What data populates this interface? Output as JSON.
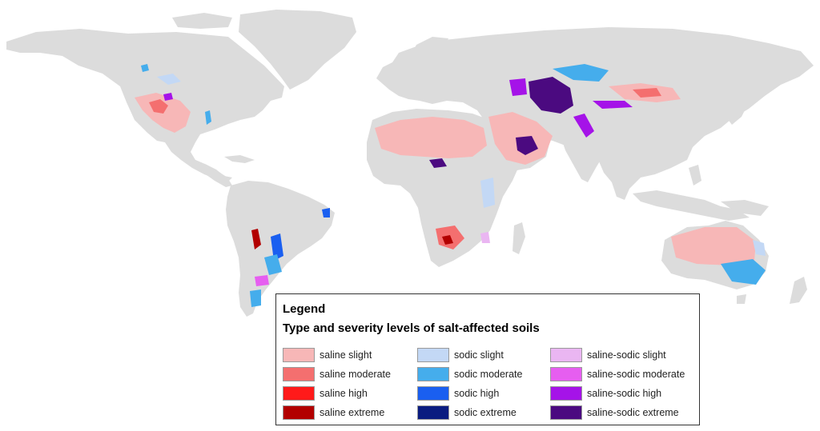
{
  "legend": {
    "title": "Legend",
    "subtitle": "Type and severity levels of salt-affected soils",
    "groups": [
      {
        "type": "saline",
        "items": [
          {
            "label": "saline slight",
            "color": "#f7b7b7"
          },
          {
            "label": "saline moderate",
            "color": "#f46f6f"
          },
          {
            "label": "saline high",
            "color": "#ff1a1a"
          },
          {
            "label": "saline extreme",
            "color": "#b20000"
          }
        ]
      },
      {
        "type": "sodic",
        "items": [
          {
            "label": "sodic slight",
            "color": "#c3d8f5"
          },
          {
            "label": "sodic moderate",
            "color": "#45adec"
          },
          {
            "label": "sodic high",
            "color": "#1a5ff0"
          },
          {
            "label": "sodic extreme",
            "color": "#0a1c80"
          }
        ]
      },
      {
        "type": "saline-sodic",
        "items": [
          {
            "label": "saline-sodic slight",
            "color": "#eab6f2"
          },
          {
            "label": "saline-sodic moderate",
            "color": "#e65ef0"
          },
          {
            "label": "saline-sodic high",
            "color": "#a513e8"
          },
          {
            "label": "saline-sodic extreme",
            "color": "#4b0a80"
          }
        ]
      }
    ]
  },
  "colors": {
    "land": "#dcdcdc",
    "ocean": "#ffffff"
  }
}
